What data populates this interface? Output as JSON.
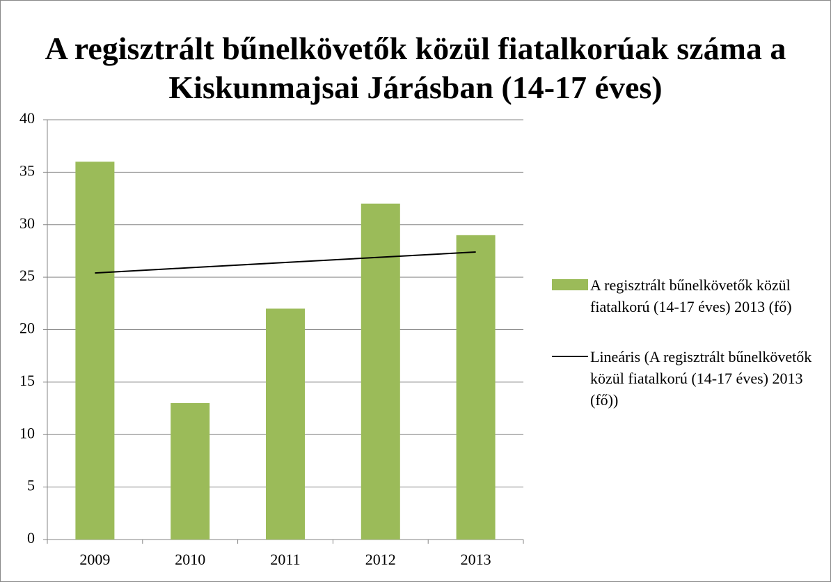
{
  "chart_data": {
    "type": "bar",
    "title": "A regisztrált bűnelkövetők közül fiatalkorúak száma a Kiskunmajsai Járásban (14-17 éves)",
    "categories": [
      "2009",
      "2010",
      "2011",
      "2012",
      "2013"
    ],
    "series": [
      {
        "name": "A regisztrált bűnelkövetők közül fiatalkorú (14-17 éves) 2013 (fő)",
        "color": "#9bbb59",
        "values": [
          36,
          13,
          22,
          32,
          29
        ]
      },
      {
        "name": "Lineáris (A regisztrált bűnelkövetők közül fiatalkorú (14-17 éves) 2013 (fő))",
        "color": "#000000",
        "type": "line",
        "values": [
          25.4,
          25.9,
          26.4,
          26.9,
          27.4
        ]
      }
    ],
    "ylim": [
      0,
      40
    ],
    "yticks": [
      0,
      5,
      10,
      15,
      20,
      25,
      30,
      35,
      40
    ],
    "grid": true,
    "legend": "right"
  }
}
